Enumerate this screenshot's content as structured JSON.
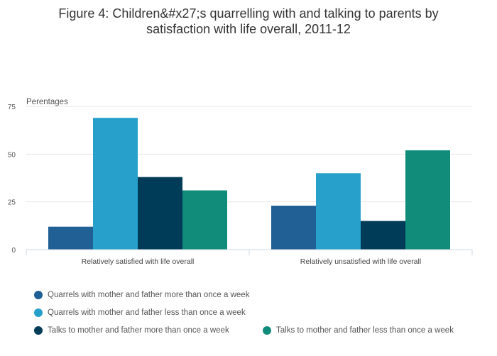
{
  "title_line1": "Figure 4: Children&#x27;s quarrelling with and talking to parents by",
  "title_line2": "satisfaction with life overall, 2011-12",
  "chart_data": {
    "type": "bar",
    "title": "Figure 4: Children&#x27;s quarrelling with and talking to parents by satisfaction with life overall, 2011-12",
    "ylabel": "Perentages",
    "xlabel": "",
    "ylim": [
      0,
      75
    ],
    "yticks": [
      0,
      25,
      50,
      75
    ],
    "grid": true,
    "legend_position": "bottom",
    "categories": [
      "Relatively satisfied with life overall",
      "Relatively unsatisfied with life overall"
    ],
    "series": [
      {
        "name": "Quarrels with mother and father more than once a week",
        "color": "#206095",
        "values": [
          12,
          23
        ]
      },
      {
        "name": "Quarrels with mother and father less than once a week",
        "color": "#27a0cc",
        "values": [
          69,
          40
        ]
      },
      {
        "name": "Talks to mother and father more than once a week",
        "color": "#003c57",
        "values": [
          38,
          15
        ]
      },
      {
        "name": "Talks to mother and father less than once a week",
        "color": "#118c7b",
        "values": [
          31,
          52
        ]
      }
    ]
  }
}
